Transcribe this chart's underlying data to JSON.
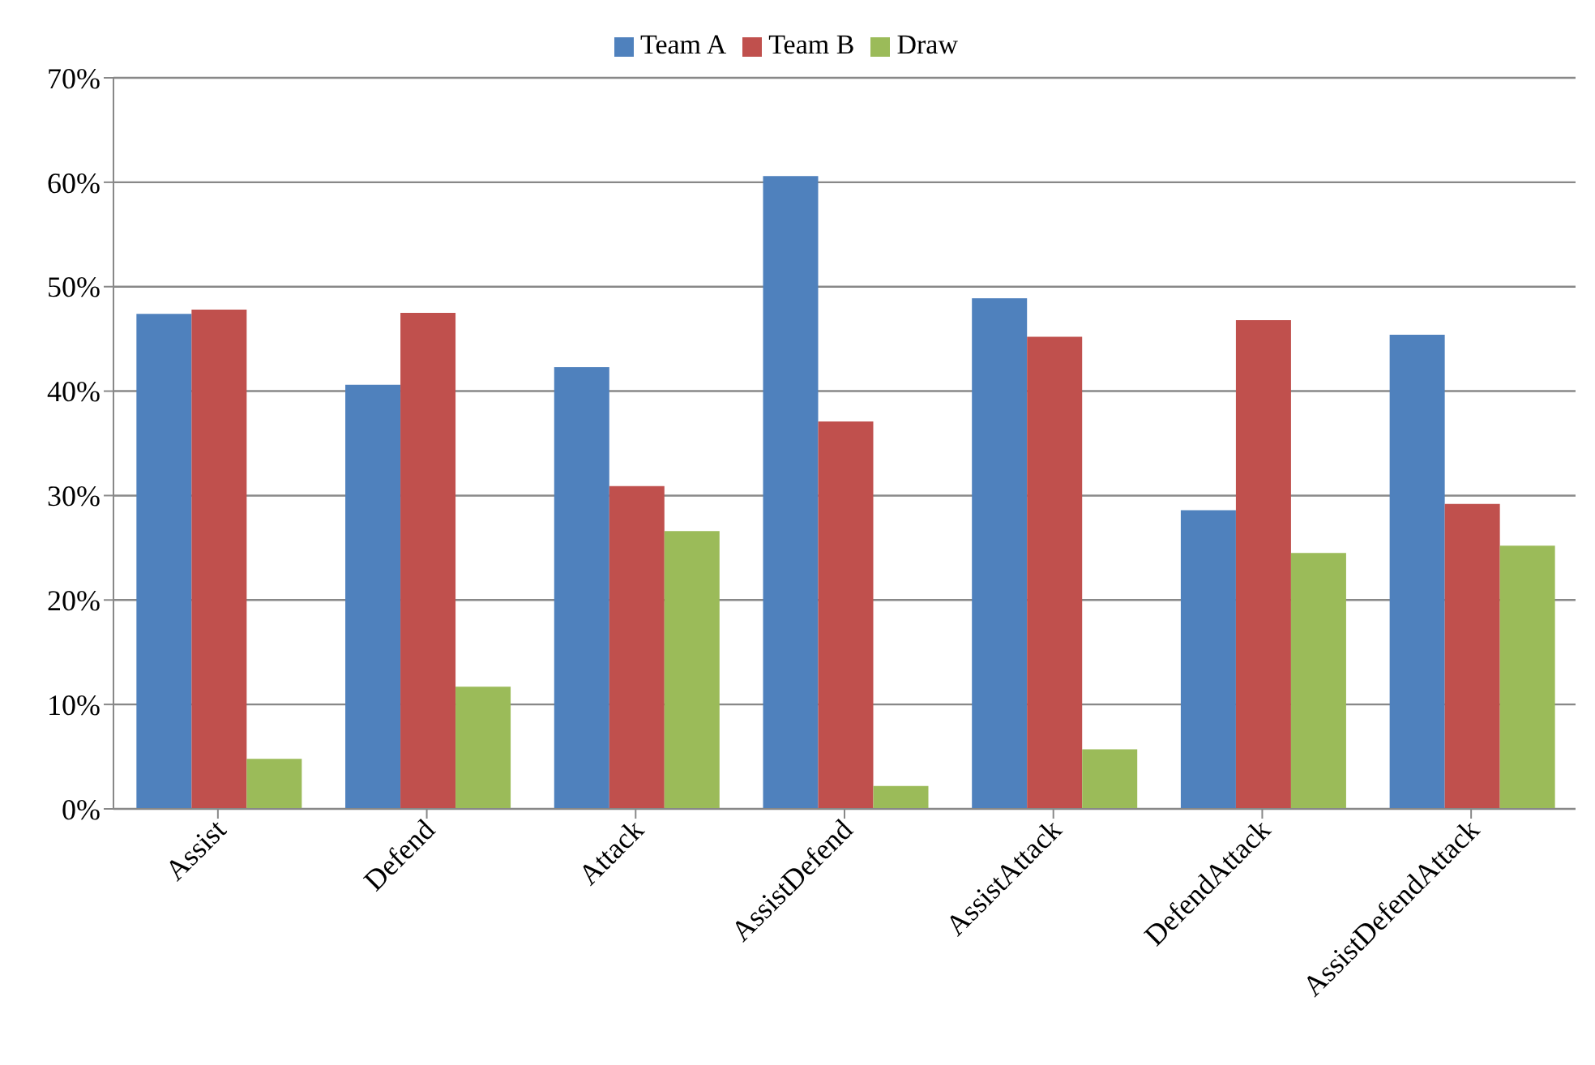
{
  "chart_data": {
    "type": "bar",
    "categories": [
      "Assist",
      "Defend",
      "Attack",
      "AssistDefend",
      "AssistAttack",
      "DefendAttack",
      "AssistDefendAttack"
    ],
    "series": [
      {
        "name": "Team A",
        "color": "#4f81bd",
        "values": [
          47.4,
          40.6,
          42.3,
          60.6,
          48.9,
          28.6,
          45.4
        ]
      },
      {
        "name": "Team B",
        "color": "#c0504d",
        "values": [
          47.8,
          47.5,
          30.9,
          37.1,
          45.2,
          46.8,
          29.2
        ]
      },
      {
        "name": "Draw",
        "color": "#9bbb59",
        "values": [
          4.8,
          11.7,
          26.6,
          2.2,
          5.7,
          24.5,
          25.2
        ]
      }
    ],
    "ylim": [
      0,
      70
    ],
    "yticks": [
      {
        "value": 0,
        "label": "0%"
      },
      {
        "value": 10,
        "label": "10%"
      },
      {
        "value": 20,
        "label": "20%"
      },
      {
        "value": 30,
        "label": "30%"
      },
      {
        "value": 40,
        "label": "40%"
      },
      {
        "value": 50,
        "label": "50%"
      },
      {
        "value": 60,
        "label": "60%"
      },
      {
        "value": 70,
        "label": "70%"
      }
    ],
    "grid": "y",
    "legend": "top"
  }
}
